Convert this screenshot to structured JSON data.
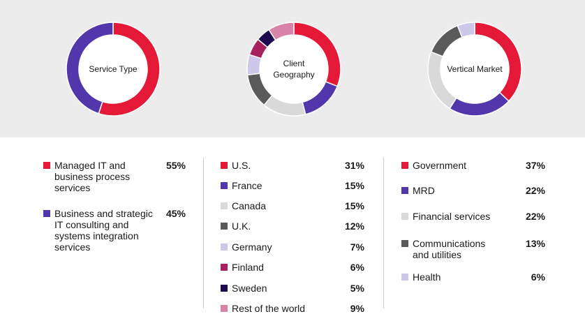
{
  "chart_data": [
    {
      "type": "pie",
      "title": "Service Type",
      "categories": [
        "Managed IT and business process services",
        "Business and strategic IT consulting and systems integration services"
      ],
      "values": [
        55,
        45
      ],
      "value_labels": [
        "55%",
        "45%"
      ],
      "colors": [
        "#e31937",
        "#5236ab"
      ]
    },
    {
      "type": "pie",
      "title": "Client Geography",
      "categories": [
        "U.S.",
        "France",
        "Canada",
        "U.K.",
        "Germany",
        "Finland",
        "Sweden",
        "Rest of the world"
      ],
      "values": [
        31,
        15,
        15,
        12,
        7,
        6,
        5,
        9
      ],
      "value_labels": [
        "31%",
        "15%",
        "15%",
        "12%",
        "7%",
        "6%",
        "5%",
        "9%"
      ],
      "colors": [
        "#e31937",
        "#5236ab",
        "#d9d9d9",
        "#5a5a5a",
        "#cdc7ea",
        "#a8215f",
        "#1f0a4d",
        "#d884a8"
      ]
    },
    {
      "type": "pie",
      "title": "Vertical Market",
      "categories": [
        "Government",
        "MRD",
        "Financial services",
        "Communications and utilities",
        "Health"
      ],
      "values": [
        37,
        22,
        22,
        13,
        6
      ],
      "value_labels": [
        "37%",
        "22%",
        "22%",
        "13%",
        "6%"
      ],
      "colors": [
        "#e31937",
        "#5236ab",
        "#d9d9d9",
        "#5a5a5a",
        "#cdc7ea"
      ]
    }
  ]
}
